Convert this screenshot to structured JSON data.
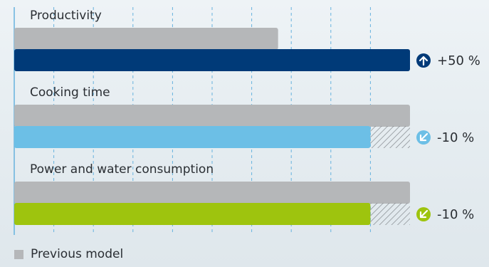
{
  "chart_data": {
    "type": "bar",
    "orientation": "horizontal",
    "xlim": [
      0,
      150
    ],
    "grid": true,
    "legend_position": "bottom-left",
    "categories": [
      "Productivity",
      "Cooking time",
      "Power and water consumption"
    ],
    "series": [
      {
        "name": "Previous model",
        "color": "#b5b7b9",
        "values": [
          100,
          150,
          150
        ]
      },
      {
        "colors": [
          "#003a78",
          "#6cbfe6",
          "#9ec40e"
        ],
        "values": [
          150,
          135,
          135
        ]
      }
    ],
    "changes": [
      {
        "label": "+50 %",
        "direction": "up",
        "icon": "arrow-up-icon",
        "color": "#003a78"
      },
      {
        "label": "-10 %",
        "direction": "down",
        "icon": "arrow-down-left-icon",
        "color": "#6cbfe6"
      },
      {
        "label": "-10 %",
        "direction": "down",
        "icon": "arrow-down-left-icon",
        "color": "#9ec40e"
      }
    ]
  },
  "legend": {
    "previous_label": "Previous model"
  }
}
